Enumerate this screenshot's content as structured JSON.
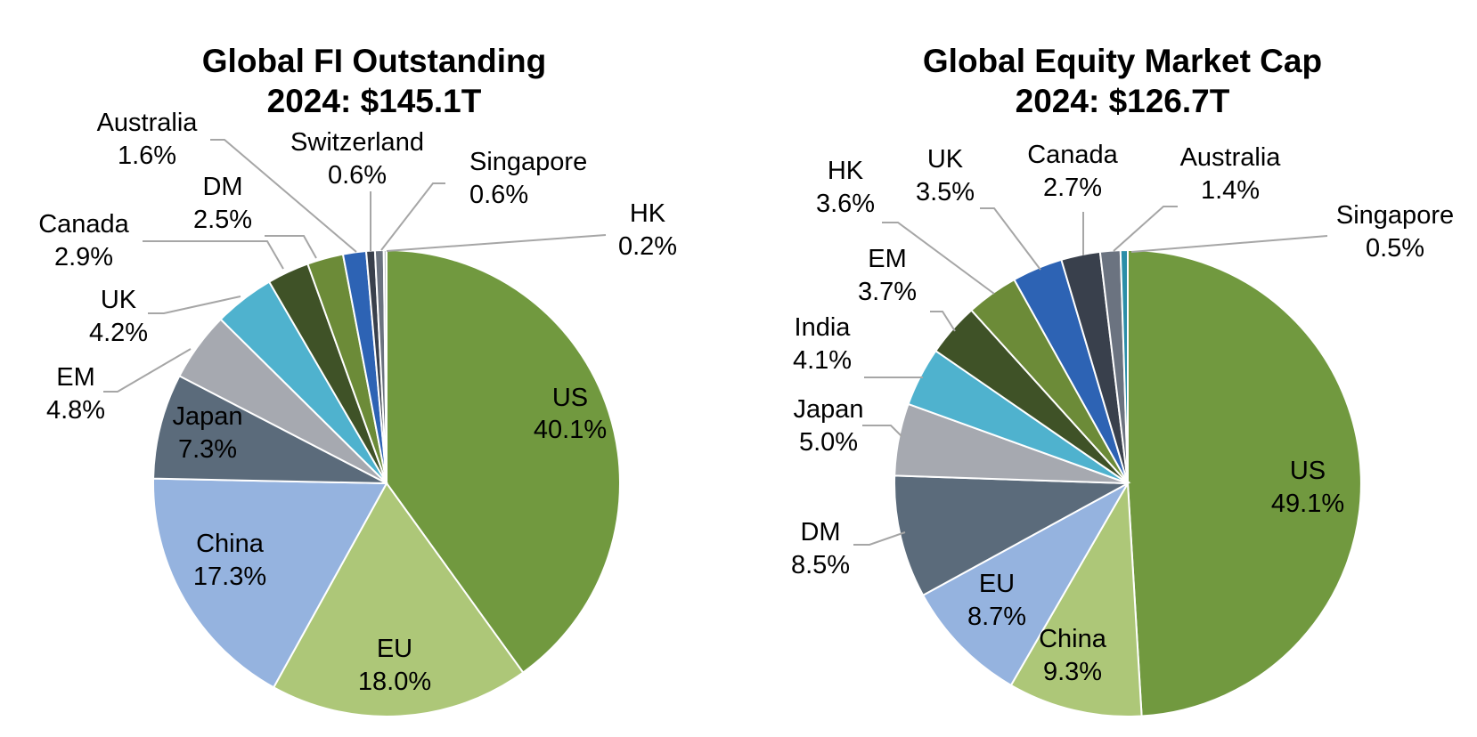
{
  "chart_data": [
    {
      "type": "pie",
      "title": "Global FI Outstanding",
      "subtitle": "2024: $145.1T",
      "slices": [
        {
          "label": "US",
          "value": 40.1,
          "text": "40.1%",
          "color": "#71993f"
        },
        {
          "label": "EU",
          "value": 18.0,
          "text": "18.0%",
          "color": "#adc778"
        },
        {
          "label": "China",
          "value": 17.3,
          "text": "17.3%",
          "color": "#95b3df"
        },
        {
          "label": "Japan",
          "value": 7.3,
          "text": "7.3%",
          "color": "#5b6b7b"
        },
        {
          "label": "EM",
          "value": 4.8,
          "text": "4.8%",
          "color": "#a6a9b0"
        },
        {
          "label": "UK",
          "value": 4.2,
          "text": "4.2%",
          "color": "#4fb2ce"
        },
        {
          "label": "Canada",
          "value": 2.9,
          "text": "2.9%",
          "color": "#3f5227"
        },
        {
          "label": "DM",
          "value": 2.5,
          "text": "2.5%",
          "color": "#6c8b38"
        },
        {
          "label": "Australia",
          "value": 1.6,
          "text": "1.6%",
          "color": "#2d63b4"
        },
        {
          "label": "Switzerland",
          "value": 0.6,
          "text": "0.6%",
          "color": "#39404c"
        },
        {
          "label": "Singapore",
          "value": 0.6,
          "text": "0.6%",
          "color": "#6b7380"
        },
        {
          "label": "HK",
          "value": 0.2,
          "text": "0.2%",
          "color": "#c3c7cc"
        }
      ]
    },
    {
      "type": "pie",
      "title": "Global Equity Market Cap",
      "subtitle": "2024: $126.7T",
      "slices": [
        {
          "label": "US",
          "value": 49.1,
          "text": "49.1%",
          "color": "#71993f"
        },
        {
          "label": "China",
          "value": 9.3,
          "text": "9.3%",
          "color": "#adc778"
        },
        {
          "label": "EU",
          "value": 8.7,
          "text": "8.7%",
          "color": "#95b3df"
        },
        {
          "label": "DM",
          "value": 8.5,
          "text": "8.5%",
          "color": "#5b6b7b"
        },
        {
          "label": "Japan",
          "value": 5.0,
          "text": "5.0%",
          "color": "#a6a9b0"
        },
        {
          "label": "India",
          "value": 4.1,
          "text": "4.1%",
          "color": "#4fb2ce"
        },
        {
          "label": "EM",
          "value": 3.7,
          "text": "3.7%",
          "color": "#3f5227"
        },
        {
          "label": "HK",
          "value": 3.6,
          "text": "3.6%",
          "color": "#6c8b38"
        },
        {
          "label": "UK",
          "value": 3.5,
          "text": "3.5%",
          "color": "#2d63b4"
        },
        {
          "label": "Canada",
          "value": 2.7,
          "text": "2.7%",
          "color": "#39404c"
        },
        {
          "label": "Australia",
          "value": 1.4,
          "text": "1.4%",
          "color": "#6b7380"
        },
        {
          "label": "Singapore",
          "value": 0.5,
          "text": "0.5%",
          "color": "#2b8ea8"
        }
      ]
    }
  ]
}
